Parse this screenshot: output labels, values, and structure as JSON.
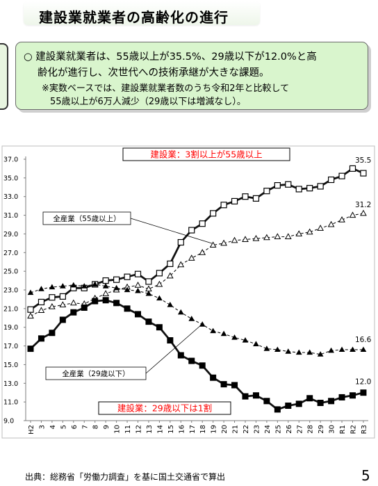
{
  "title": "建設業就業者の高齢化の進行",
  "summary": {
    "line1": "○  建設業就業者は、55歳以上が35.5%、29歳以下が12.0%と高",
    "line2": "齢化が進行し、次世代への技術承継が大きな課題。",
    "line3": "※実数ベースでは、建設業就業者数のうち令和2年と比較して",
    "line4": "55歳以上が6万人減少（29歳以下は増減なし）。"
  },
  "footer": {
    "source": "出典：総務省「労働力調査」を基に国土交通省で算出",
    "page_number": "5"
  },
  "chart_data": {
    "type": "line",
    "x": [
      "H2",
      "3",
      "4",
      "5",
      "6",
      "7",
      "8",
      "9",
      "10",
      "11",
      "12",
      "13",
      "14",
      "15",
      "16",
      "17",
      "18",
      "19",
      "20",
      "21",
      "22",
      "23",
      "24",
      "25",
      "26",
      "27",
      "28",
      "29",
      "30",
      "R1",
      "R2",
      "R3"
    ],
    "ylim": [
      9.0,
      37.0
    ],
    "yticks": [
      "9.0",
      "11.0",
      "13.0",
      "15.0",
      "17.0",
      "19.0",
      "21.0",
      "23.0",
      "25.0",
      "27.0",
      "29.0",
      "31.0",
      "33.0",
      "35.0",
      "37.0"
    ],
    "grid": false,
    "series": [
      {
        "key": "c55",
        "marker": "square-open",
        "style": "solid-thick",
        "color": "#111111",
        "values": [
          20.9,
          21.7,
          22.2,
          22.3,
          23.2,
          23.2,
          23.6,
          24.0,
          24.1,
          24.4,
          24.7,
          23.9,
          24.8,
          25.8,
          28.1,
          29.4,
          30.1,
          31.2,
          32.1,
          32.5,
          33.0,
          32.8,
          33.6,
          34.2,
          34.3,
          33.8,
          33.9,
          34.1,
          34.8,
          35.2,
          36.0,
          35.5
        ]
      },
      {
        "key": "a55",
        "marker": "triangle-open",
        "style": "dashed",
        "color": "#111111",
        "values": [
          20.2,
          20.8,
          21.2,
          21.4,
          21.6,
          21.5,
          22.1,
          22.6,
          23.0,
          23.3,
          23.5,
          23.1,
          23.6,
          24.5,
          25.7,
          26.4,
          27.0,
          27.8,
          28.0,
          28.3,
          28.4,
          28.5,
          28.6,
          28.7,
          28.7,
          29.0,
          29.2,
          29.6,
          30.0,
          30.5,
          31.0,
          31.2
        ]
      },
      {
        "key": "a29",
        "marker": "triangle-filled",
        "style": "dashed",
        "color": "#111111",
        "values": [
          22.7,
          23.1,
          23.3,
          23.4,
          23.5,
          23.4,
          23.6,
          23.4,
          23.2,
          23.0,
          22.9,
          22.6,
          22.1,
          21.4,
          20.6,
          19.9,
          19.3,
          18.6,
          18.3,
          17.9,
          17.6,
          17.2,
          16.7,
          16.6,
          16.4,
          16.3,
          16.3,
          16.1,
          16.5,
          16.6,
          16.6,
          16.6
        ]
      },
      {
        "key": "c29",
        "marker": "square-filled",
        "style": "solid-thick",
        "color": "#111111",
        "values": [
          16.7,
          17.8,
          18.4,
          19.8,
          20.6,
          21.1,
          21.8,
          21.9,
          21.6,
          21.0,
          20.4,
          19.6,
          19.0,
          17.6,
          16.0,
          15.4,
          14.9,
          13.6,
          12.9,
          12.8,
          11.6,
          11.7,
          11.1,
          10.2,
          10.6,
          10.8,
          11.4,
          10.9,
          11.1,
          11.5,
          11.7,
          12.0
        ]
      }
    ],
    "annotations": {
      "label_c55_end": "35.5",
      "label_a55_end": "31.2",
      "label_a29_end": "16.6",
      "label_c29_end": "12.0",
      "callout_top": "建設業：3割以上が55歳以上",
      "callout_bottom": "建設業：29歳以下は1割",
      "legend_all55": "全産業（55歳以上）",
      "legend_all29": "全産業（29歳以下）"
    },
    "accent_red": "#ff0000"
  }
}
